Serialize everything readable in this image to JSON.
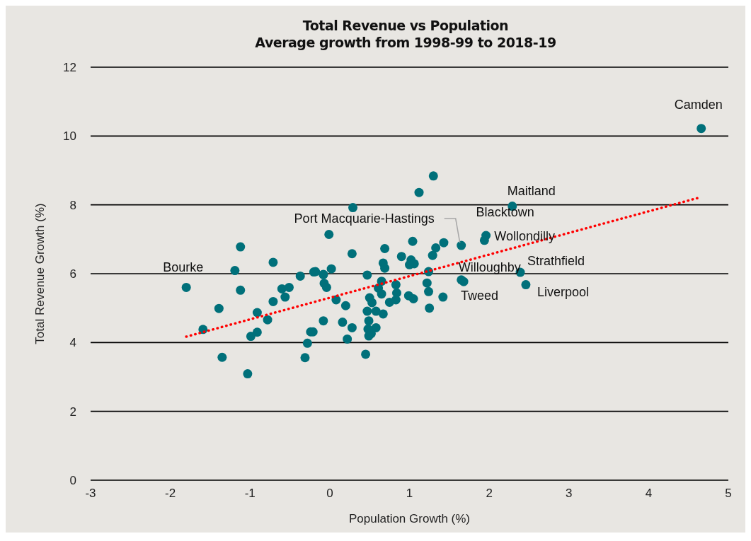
{
  "chart_data": {
    "type": "scatter",
    "title": "Total Revenue vs Population",
    "subtitle": "Average growth from 1998-99 to 2018-19",
    "xlabel": "Population Growth (%)",
    "ylabel": "Total Revenue Growth (%)",
    "xlim": [
      -3,
      5
    ],
    "xticks": [
      -3,
      -2,
      -1,
      0,
      1,
      2,
      3,
      4,
      5
    ],
    "ylim": [
      0,
      12
    ],
    "yticks": [
      0,
      2,
      4,
      6,
      8,
      10,
      12
    ],
    "grid": "y",
    "marker": "circle",
    "series": [
      {
        "color": "#00707a",
        "x": [
          -1.8,
          -1.59,
          -1.39,
          -1.35,
          -1.12,
          -1.19,
          -1.12,
          -1.03,
          -0.99,
          -0.91,
          -0.91,
          -0.78,
          -0.71,
          -0.71,
          -0.6,
          -0.56,
          -0.51,
          -0.37,
          -0.31,
          -0.28,
          -0.24,
          -0.21,
          -0.2,
          -0.08,
          -0.07,
          -0.04,
          -0.08,
          -0.01,
          0.02,
          0.08,
          0.16,
          0.2,
          0.22,
          0.28,
          0.28,
          0.29,
          1.3,
          1.12,
          1.04,
          1.43,
          1.65,
          0.69,
          1.33,
          1.29,
          0.9,
          0.67,
          1.02,
          1.06,
          1.0,
          0.69,
          1.24,
          0.47,
          0.65,
          1.22,
          1.65,
          1.68,
          0.83,
          0.61,
          0.84,
          0.65,
          1.24,
          1.42,
          0.99,
          1.05,
          0.75,
          0.83,
          0.5,
          0.53,
          0.47,
          0.58,
          0.67,
          1.25,
          0.49,
          0.58,
          0.48,
          0.52,
          0.49,
          0.45,
          4.66,
          2.29,
          1.96,
          1.94,
          2.39,
          2.46,
          -0.08,
          -0.18
        ],
        "values": [
          5.6,
          4.38,
          4.99,
          3.57,
          6.78,
          6.09,
          5.52,
          3.09,
          4.18,
          4.87,
          4.3,
          4.66,
          6.33,
          5.19,
          5.56,
          5.32,
          5.6,
          5.93,
          3.56,
          3.98,
          4.31,
          4.31,
          6.05,
          5.97,
          5.72,
          5.6,
          4.63,
          7.14,
          6.14,
          5.24,
          4.59,
          5.07,
          4.1,
          6.58,
          4.43,
          7.92,
          8.84,
          8.36,
          6.94,
          6.9,
          6.82,
          6.73,
          6.75,
          6.53,
          6.5,
          6.31,
          6.4,
          6.29,
          6.26,
          6.16,
          6.06,
          5.96,
          5.78,
          5.73,
          5.82,
          5.77,
          5.68,
          5.58,
          5.44,
          5.41,
          5.48,
          5.32,
          5.36,
          5.27,
          5.17,
          5.24,
          5.3,
          5.16,
          4.91,
          4.91,
          4.83,
          5.0,
          4.63,
          4.43,
          4.39,
          4.26,
          4.19,
          3.66,
          10.22,
          7.96,
          7.11,
          6.97,
          6.04,
          5.68,
          5.98,
          6.06
        ]
      },
      {
        "type": "line",
        "color": "#ff0000",
        "line_style": "dotted",
        "marker": "none",
        "x": [
          -1.8,
          4.65
        ],
        "values": [
          4.17,
          8.22
        ]
      }
    ],
    "annotations": [
      {
        "text": "Bourke",
        "x": -1.8,
        "y": 5.6
      },
      {
        "text": "Camden",
        "x": 4.66,
        "y": 10.22
      },
      {
        "text": "Maitland",
        "x": 2.29,
        "y": 7.96
      },
      {
        "text": "Port Macquarie-Hastings",
        "x": 1.65,
        "y": 6.82
      },
      {
        "text": "Blacktown",
        "x": 1.96,
        "y": 7.11
      },
      {
        "text": "Wollondilly",
        "x": 1.94,
        "y": 6.97
      },
      {
        "text": "Strathfield",
        "x": 2.39,
        "y": 6.04
      },
      {
        "text": "Willoughby",
        "x": 1.65,
        "y": 5.82
      },
      {
        "text": "Tweed",
        "x": 1.68,
        "y": 5.77
      },
      {
        "text": "Liverpool",
        "x": 2.46,
        "y": 5.68
      }
    ]
  }
}
